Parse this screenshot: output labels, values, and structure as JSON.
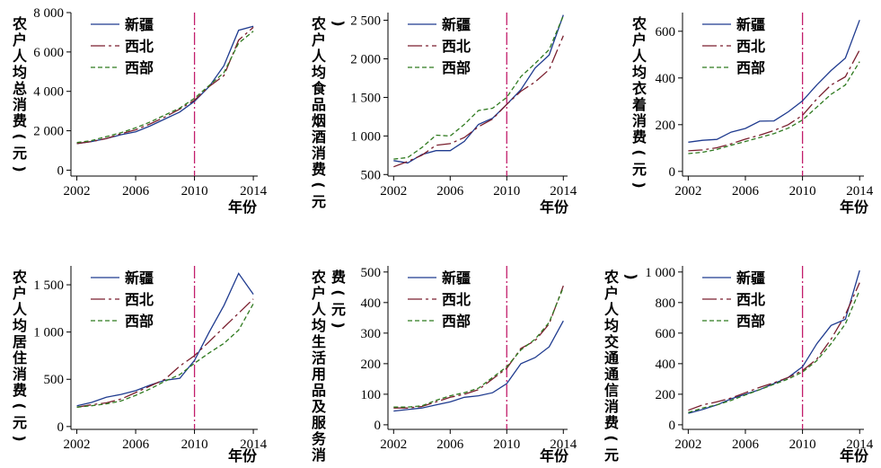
{
  "chart_data": [
    {
      "type": "line",
      "ylabel": "农户人均总消费(元)",
      "xlabel": "年份",
      "x": [
        2002,
        2003,
        2004,
        2005,
        2006,
        2007,
        2008,
        2009,
        2010,
        2011,
        2012,
        2013,
        2014
      ],
      "xticks": [
        2002,
        2006,
        2010,
        2014
      ],
      "xticklabels": [
        "2002",
        "2006",
        "2010",
        "2014"
      ],
      "ylim": [
        -300,
        8000
      ],
      "yticks": [
        0,
        2000,
        4000,
        6000,
        8000
      ],
      "yticklabels": [
        "0",
        "2 000",
        "4 000",
        "6 000",
        "8 000"
      ],
      "vline": 2010,
      "series": [
        {
          "name": "新疆",
          "values": [
            1350,
            1450,
            1600,
            1800,
            1950,
            2250,
            2600,
            2950,
            3500,
            4250,
            5300,
            7100,
            7300
          ]
        },
        {
          "name": "西北",
          "values": [
            1350,
            1450,
            1600,
            1850,
            2050,
            2350,
            2700,
            3100,
            3550,
            4250,
            4800,
            6600,
            7250
          ]
        },
        {
          "name": "西部",
          "values": [
            1400,
            1500,
            1700,
            1900,
            2150,
            2450,
            2800,
            3150,
            3650,
            4300,
            4950,
            6450,
            7050
          ]
        }
      ],
      "legend_position": "top-left"
    },
    {
      "type": "line",
      "ylabel": "农户人均食品烟酒消费(元)",
      "xlabel": "年份",
      "x": [
        2002,
        2003,
        2004,
        2005,
        2006,
        2007,
        2008,
        2009,
        2010,
        2011,
        2012,
        2013,
        2014
      ],
      "xticks": [
        2002,
        2006,
        2010,
        2014
      ],
      "xticklabels": [
        "2002",
        "2006",
        "2010",
        "2014"
      ],
      "ylim": [
        480,
        2600
      ],
      "yticks": [
        500,
        1000,
        1500,
        2000,
        2500
      ],
      "yticklabels": [
        "500",
        "1 000",
        "1 500",
        "2 000",
        "2 500"
      ],
      "vline": 2010,
      "series": [
        {
          "name": "新疆",
          "values": [
            680,
            650,
            760,
            810,
            810,
            930,
            1150,
            1230,
            1410,
            1600,
            1880,
            2050,
            2570
          ]
        },
        {
          "name": "西北",
          "values": [
            600,
            670,
            750,
            880,
            900,
            980,
            1120,
            1220,
            1410,
            1580,
            1700,
            1860,
            2300
          ]
        },
        {
          "name": "西部",
          "values": [
            700,
            720,
            850,
            1010,
            1000,
            1150,
            1330,
            1360,
            1500,
            1770,
            1940,
            2120,
            2560
          ]
        }
      ],
      "legend_position": "top-left"
    },
    {
      "type": "line",
      "ylabel": "农户人均衣着消费(元)",
      "xlabel": "年份",
      "x": [
        2002,
        2003,
        2004,
        2005,
        2006,
        2007,
        2008,
        2009,
        2010,
        2011,
        2012,
        2013,
        2014
      ],
      "xticks": [
        2002,
        2006,
        2010,
        2014
      ],
      "xticklabels": [
        "2002",
        "2006",
        "2010",
        "2014"
      ],
      "ylim": [
        -20,
        680
      ],
      "yticks": [
        0,
        200,
        400,
        600
      ],
      "yticklabels": [
        "0",
        "200",
        "400",
        "600"
      ],
      "vline": 2010,
      "series": [
        {
          "name": "新疆",
          "values": [
            125,
            133,
            137,
            168,
            184,
            215,
            216,
            255,
            302,
            370,
            432,
            485,
            648
          ]
        },
        {
          "name": "西北",
          "values": [
            88,
            92,
            101,
            118,
            138,
            155,
            175,
            200,
            240,
            310,
            370,
            405,
            520
          ]
        },
        {
          "name": "西部",
          "values": [
            76,
            82,
            94,
            112,
            128,
            145,
            162,
            185,
            220,
            275,
            330,
            370,
            470
          ]
        }
      ],
      "legend_position": "top-left"
    },
    {
      "type": "line",
      "ylabel": "农户人均居住消费(元)",
      "xlabel": "年份",
      "x": [
        2002,
        2003,
        2004,
        2005,
        2006,
        2007,
        2008,
        2009,
        2010,
        2011,
        2012,
        2013,
        2014
      ],
      "xticks": [
        2002,
        2006,
        2010,
        2014
      ],
      "xticklabels": [
        "2002",
        "2006",
        "2010",
        "2014"
      ],
      "ylim": [
        -30,
        1700
      ],
      "yticks": [
        0,
        500,
        1000,
        1500
      ],
      "yticklabels": [
        "0",
        "500",
        "1 000",
        "1 500"
      ],
      "vline": 2010,
      "series": [
        {
          "name": "新疆",
          "values": [
            220,
            255,
            310,
            340,
            380,
            440,
            490,
            510,
            700,
            1000,
            1280,
            1620,
            1400
          ]
        },
        {
          "name": "西北",
          "values": [
            205,
            230,
            250,
            290,
            360,
            430,
            500,
            640,
            750,
            900,
            1050,
            1200,
            1350
          ]
        },
        {
          "name": "西部",
          "values": [
            205,
            220,
            240,
            270,
            330,
            400,
            480,
            550,
            670,
            780,
            880,
            1020,
            1300
          ]
        }
      ],
      "legend_position": "top-left"
    },
    {
      "type": "line",
      "ylabel": "农户人均生活用品及服务消费(元)",
      "xlabel": "年份",
      "x": [
        2002,
        2003,
        2004,
        2005,
        2006,
        2007,
        2008,
        2009,
        2010,
        2011,
        2012,
        2013,
        2014
      ],
      "xticks": [
        2002,
        2006,
        2010,
        2014
      ],
      "xticklabels": [
        "2002",
        "2006",
        "2010",
        "2014"
      ],
      "ylim": [
        -15,
        520
      ],
      "yticks": [
        0,
        100,
        200,
        300,
        400,
        500
      ],
      "yticklabels": [
        "0",
        "100",
        "200",
        "300",
        "400",
        "500"
      ],
      "vline": 2010,
      "series": [
        {
          "name": "新疆",
          "values": [
            45,
            50,
            55,
            65,
            75,
            90,
            95,
            105,
            135,
            200,
            220,
            255,
            340
          ]
        },
        {
          "name": "西北",
          "values": [
            55,
            55,
            60,
            75,
            90,
            100,
            115,
            150,
            185,
            250,
            275,
            330,
            455
          ]
        },
        {
          "name": "西部",
          "values": [
            58,
            58,
            62,
            80,
            95,
            105,
            120,
            155,
            190,
            245,
            280,
            335,
            450
          ]
        }
      ],
      "legend_position": "top-left"
    },
    {
      "type": "line",
      "ylabel": "农户人均交通通信消费(元)",
      "xlabel": "年份",
      "x": [
        2002,
        2003,
        2004,
        2005,
        2006,
        2007,
        2008,
        2009,
        2010,
        2011,
        2012,
        2013,
        2014
      ],
      "xticks": [
        2002,
        2006,
        2010,
        2014
      ],
      "xticklabels": [
        "2002",
        "2006",
        "2010",
        "2014"
      ],
      "ylim": [
        -30,
        1040
      ],
      "yticks": [
        0,
        200,
        400,
        600,
        800,
        1000
      ],
      "yticklabels": [
        "0",
        "200",
        "400",
        "600",
        "800",
        "1 000"
      ],
      "vline": 2010,
      "series": [
        {
          "name": "新疆",
          "values": [
            75,
            100,
            130,
            170,
            200,
            230,
            270,
            310,
            380,
            530,
            650,
            690,
            1010
          ]
        },
        {
          "name": "西北",
          "values": [
            95,
            130,
            150,
            175,
            210,
            245,
            275,
            310,
            355,
            430,
            560,
            720,
            930
          ]
        },
        {
          "name": "西部",
          "values": [
            80,
            110,
            130,
            160,
            195,
            230,
            265,
            300,
            345,
            420,
            530,
            660,
            880
          ]
        }
      ],
      "legend_position": "top-left"
    }
  ],
  "colors": {
    "新疆": "#1f3b8f",
    "西北": "#7a1f2e",
    "西部": "#2f7a1f",
    "vline": "#c21d6b"
  }
}
